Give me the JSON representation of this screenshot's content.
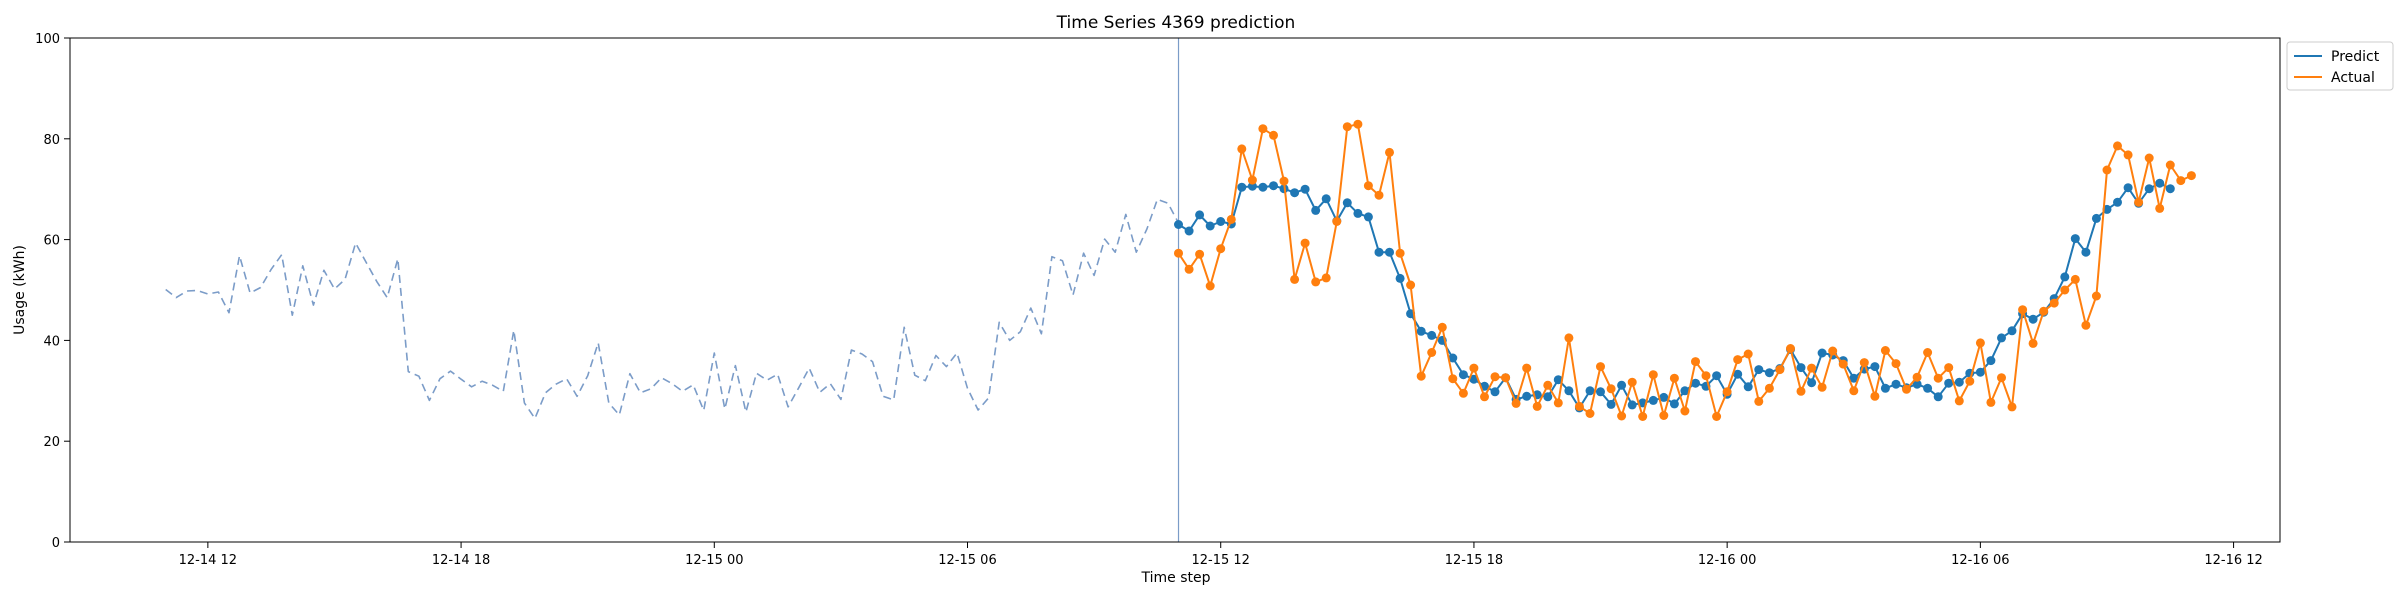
{
  "chart_data": {
    "type": "line",
    "title": "Time Series 4369 prediction",
    "xlabel": "Time step",
    "ylabel": "Usage (kWh)",
    "ylim": [
      0,
      100
    ],
    "yticks": [
      0,
      20,
      40,
      60,
      80,
      100
    ],
    "x_unit": "hour",
    "xlim": [
      "2024-12-14 08:44",
      "2024-12-16 13:06"
    ],
    "xticks": [
      {
        "value": "2024-12-14 12:00",
        "label": "12-14 12"
      },
      {
        "value": "2024-12-14 18:00",
        "label": "12-14 18"
      },
      {
        "value": "2024-12-15 00:00",
        "label": "12-15 00"
      },
      {
        "value": "2024-12-15 06:00",
        "label": "12-15 06"
      },
      {
        "value": "2024-12-15 12:00",
        "label": "12-15 12"
      },
      {
        "value": "2024-12-15 18:00",
        "label": "12-15 18"
      },
      {
        "value": "2024-12-16 00:00",
        "label": "12-16 00"
      },
      {
        "value": "2024-12-16 06:00",
        "label": "12-16 06"
      },
      {
        "value": "2024-12-16 12:00",
        "label": "12-16 12"
      }
    ],
    "vline_x": "2024-12-15 11:00",
    "grid": false,
    "legend_position": "top-right",
    "series": [
      {
        "name": "history",
        "style": "dashed",
        "color": "#7b9cc8",
        "x_start": "2024-12-14 11:00",
        "step_minutes": 15,
        "values": [
          50.1,
          48.5,
          49.8,
          49.9,
          49.2,
          49.6,
          45.5,
          56.8,
          49.4,
          50.5,
          54.1,
          57.0,
          45.0,
          54.8,
          47.0,
          53.9,
          50.2,
          52.1,
          59.3,
          55.5,
          51.7,
          48.5,
          56.2,
          33.8,
          32.9,
          28.1,
          32.4,
          33.9,
          32.3,
          30.8,
          31.9,
          31.1,
          29.9,
          42.0,
          27.6,
          24.5,
          29.6,
          31.3,
          32.4,
          28.9,
          33.0,
          39.5,
          27.6,
          25.2,
          33.4,
          29.6,
          30.4,
          32.6,
          31.4,
          29.9,
          31.2,
          26.1,
          37.5,
          26.4,
          35.0,
          25.8,
          33.5,
          32.1,
          33.3,
          26.8,
          30.6,
          34.5,
          29.7,
          31.4,
          28.3,
          38.1,
          37.3,
          35.8,
          28.9,
          28.2,
          42.6,
          33.1,
          32.0,
          37.0,
          34.8,
          37.5,
          30.5,
          26.2,
          28.6,
          43.6,
          40.0,
          41.7,
          46.4,
          41.3,
          56.6,
          55.8,
          49.0,
          57.3,
          52.9,
          60.1,
          57.5,
          65.0,
          57.5,
          62.1,
          68.0,
          67.2,
          63.3
        ]
      },
      {
        "name": "Predict",
        "style": "solid-marker",
        "color": "#1f77b4",
        "x_start": "2024-12-15 11:00",
        "step_minutes": 15,
        "values": [
          63.0,
          61.7,
          64.9,
          62.7,
          63.6,
          63.1,
          70.4,
          70.6,
          70.4,
          70.7,
          70.1,
          69.3,
          70.0,
          65.8,
          68.1,
          63.7,
          67.3,
          65.2,
          64.5,
          57.5,
          57.5,
          52.3,
          45.3,
          41.8,
          41.0,
          40.0,
          36.5,
          33.2,
          32.3,
          30.9,
          29.8,
          32.6,
          28.3,
          28.9,
          29.2,
          28.8,
          32.2,
          30.0,
          26.6,
          30.0,
          29.8,
          27.3,
          31.1,
          27.2,
          27.6,
          28.1,
          28.7,
          27.4,
          30.0,
          31.5,
          30.9,
          33.0,
          29.3,
          33.3,
          30.8,
          34.2,
          33.6,
          34.4,
          38.2,
          34.6,
          31.6,
          37.5,
          37.1,
          36.0,
          32.5,
          34.3,
          34.8,
          30.5,
          31.3,
          30.6,
          31.3,
          30.5,
          28.8,
          31.5,
          31.7,
          33.5,
          33.7,
          36.0,
          40.5,
          41.9,
          45.3,
          44.2,
          45.6,
          48.3,
          52.6,
          60.2,
          57.5,
          64.2,
          66.0,
          67.4,
          70.3,
          67.2,
          70.1,
          71.2,
          70.1
        ]
      },
      {
        "name": "Actual",
        "style": "solid-marker",
        "color": "#ff7f0e",
        "x_start": "2024-12-15 11:00",
        "step_minutes": 15,
        "values": [
          57.3,
          54.1,
          57.1,
          50.8,
          58.2,
          64.0,
          78.0,
          71.8,
          82.0,
          80.7,
          71.6,
          52.1,
          59.3,
          51.6,
          52.4,
          63.6,
          82.4,
          82.9,
          70.7,
          68.8,
          77.3,
          57.3,
          51.0,
          32.9,
          37.6,
          42.6,
          32.4,
          29.5,
          34.5,
          28.8,
          32.8,
          32.6,
          27.5,
          34.5,
          26.9,
          31.1,
          27.6,
          40.5,
          26.9,
          25.5,
          34.8,
          30.4,
          25.0,
          31.7,
          24.9,
          33.2,
          25.1,
          32.5,
          26.0,
          35.8,
          33.0,
          24.9,
          29.8,
          36.2,
          37.3,
          27.9,
          30.5,
          34.2,
          38.4,
          29.9,
          34.5,
          30.7,
          37.9,
          35.3,
          30.0,
          35.6,
          28.9,
          38.0,
          35.4,
          30.3,
          32.7,
          37.6,
          32.5,
          34.6,
          28.0,
          31.9,
          39.5,
          27.7,
          32.6,
          26.8,
          46.1,
          39.4,
          45.8,
          47.4,
          50.0,
          52.1,
          43.0,
          48.8,
          73.8,
          78.6,
          76.8,
          67.4,
          76.2,
          66.2,
          74.8,
          71.7,
          72.7
        ]
      }
    ]
  }
}
